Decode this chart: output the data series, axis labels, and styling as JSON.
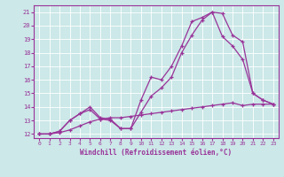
{
  "xlabel": "Windchill (Refroidissement éolien,°C)",
  "xlim": [
    -0.5,
    23.5
  ],
  "ylim": [
    11.7,
    21.5
  ],
  "xticks": [
    0,
    1,
    2,
    3,
    4,
    5,
    6,
    7,
    8,
    9,
    10,
    11,
    12,
    13,
    14,
    15,
    16,
    17,
    18,
    19,
    20,
    21,
    22,
    23
  ],
  "yticks": [
    12,
    13,
    14,
    15,
    16,
    17,
    18,
    19,
    20,
    21
  ],
  "background_color": "#cce8e8",
  "line_color": "#993399",
  "grid_color": "#bbdddd",
  "series": [
    {
      "x": [
        0,
        1,
        2,
        3,
        4,
        5,
        6,
        7,
        8,
        9,
        10,
        11,
        12,
        13,
        14,
        15,
        16,
        17,
        18,
        19,
        20,
        21,
        22,
        23
      ],
      "y": [
        12,
        12,
        12.2,
        13,
        13.5,
        14,
        13.2,
        13.1,
        12.4,
        12.4,
        14.5,
        16.2,
        16.0,
        17.0,
        18.5,
        20.3,
        20.6,
        21.0,
        19.2,
        18.5,
        17.5,
        15.0,
        14.5,
        14.2
      ]
    },
    {
      "x": [
        0,
        1,
        2,
        3,
        4,
        5,
        6,
        7,
        8,
        9,
        10,
        11,
        12,
        13,
        14,
        15,
        16,
        17,
        18,
        19,
        20,
        21,
        22,
        23
      ],
      "y": [
        12,
        12,
        12.1,
        12.3,
        12.6,
        12.9,
        13.1,
        13.2,
        13.2,
        13.3,
        13.4,
        13.5,
        13.6,
        13.7,
        13.8,
        13.9,
        14.0,
        14.1,
        14.2,
        14.3,
        14.1,
        14.2,
        14.2,
        14.2
      ]
    },
    {
      "x": [
        0,
        1,
        2,
        3,
        4,
        5,
        6,
        7,
        8,
        9,
        10,
        11,
        12,
        13,
        14,
        15,
        16,
        17,
        18,
        19,
        20,
        21,
        22,
        23
      ],
      "y": [
        12,
        12,
        12.2,
        13,
        13.5,
        13.8,
        13.1,
        13.0,
        12.4,
        12.4,
        13.6,
        14.8,
        15.4,
        16.2,
        18.0,
        19.3,
        20.4,
        21.0,
        20.9,
        19.3,
        18.8,
        15.0,
        14.5,
        14.2
      ]
    }
  ]
}
